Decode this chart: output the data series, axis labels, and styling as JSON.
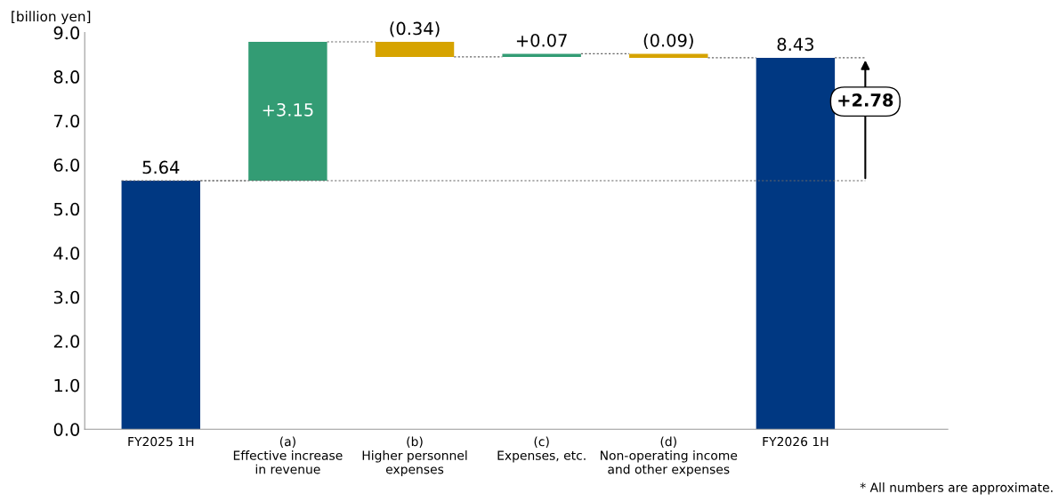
{
  "chart_data": {
    "type": "bar",
    "ylabel": "[billion yen]",
    "categories": [
      "FY2025 1H",
      "(a)\nEffective increase\nin revenue",
      "(b)\nHigher personnel\nexpenses",
      "(c)\nExpenses, etc.",
      "(d)\nNon-operating income\nand other expenses",
      "FY2026 1H"
    ],
    "values": [
      5.64,
      3.15,
      -0.34,
      0.07,
      -0.09,
      8.43
    ],
    "base": [
      0,
      5.64,
      8.79,
      8.45,
      8.52,
      0
    ],
    "colors": [
      "#003882",
      "#339c74",
      "#d6a300",
      "#339c74",
      "#d6a300",
      "#003882"
    ],
    "value_labels": [
      "5.64",
      "+3.15",
      "(0.34)",
      "+0.07",
      "(0.09)",
      "8.43"
    ],
    "ylim": [
      0,
      9
    ],
    "yticks": [
      {
        "value": 0,
        "label": "0.0"
      },
      {
        "value": 1,
        "label": "1.0"
      },
      {
        "value": 2,
        "label": "2.0"
      },
      {
        "value": 3,
        "label": "3.0"
      },
      {
        "value": 4,
        "label": "4.0"
      },
      {
        "value": 5,
        "label": "5.0"
      },
      {
        "value": 6,
        "label": "6.0"
      },
      {
        "value": 7,
        "label": "7.0"
      },
      {
        "value": 8,
        "label": "8.0"
      },
      {
        "value": 9,
        "label": "9.0"
      }
    ],
    "ref_lines": [
      {
        "axis": "y",
        "value": 5.64,
        "color": "#666666",
        "line_style": "dotted"
      }
    ],
    "grid": false,
    "legend": false,
    "annotations": [
      "+2.78",
      "* All numbers are approximate."
    ]
  }
}
